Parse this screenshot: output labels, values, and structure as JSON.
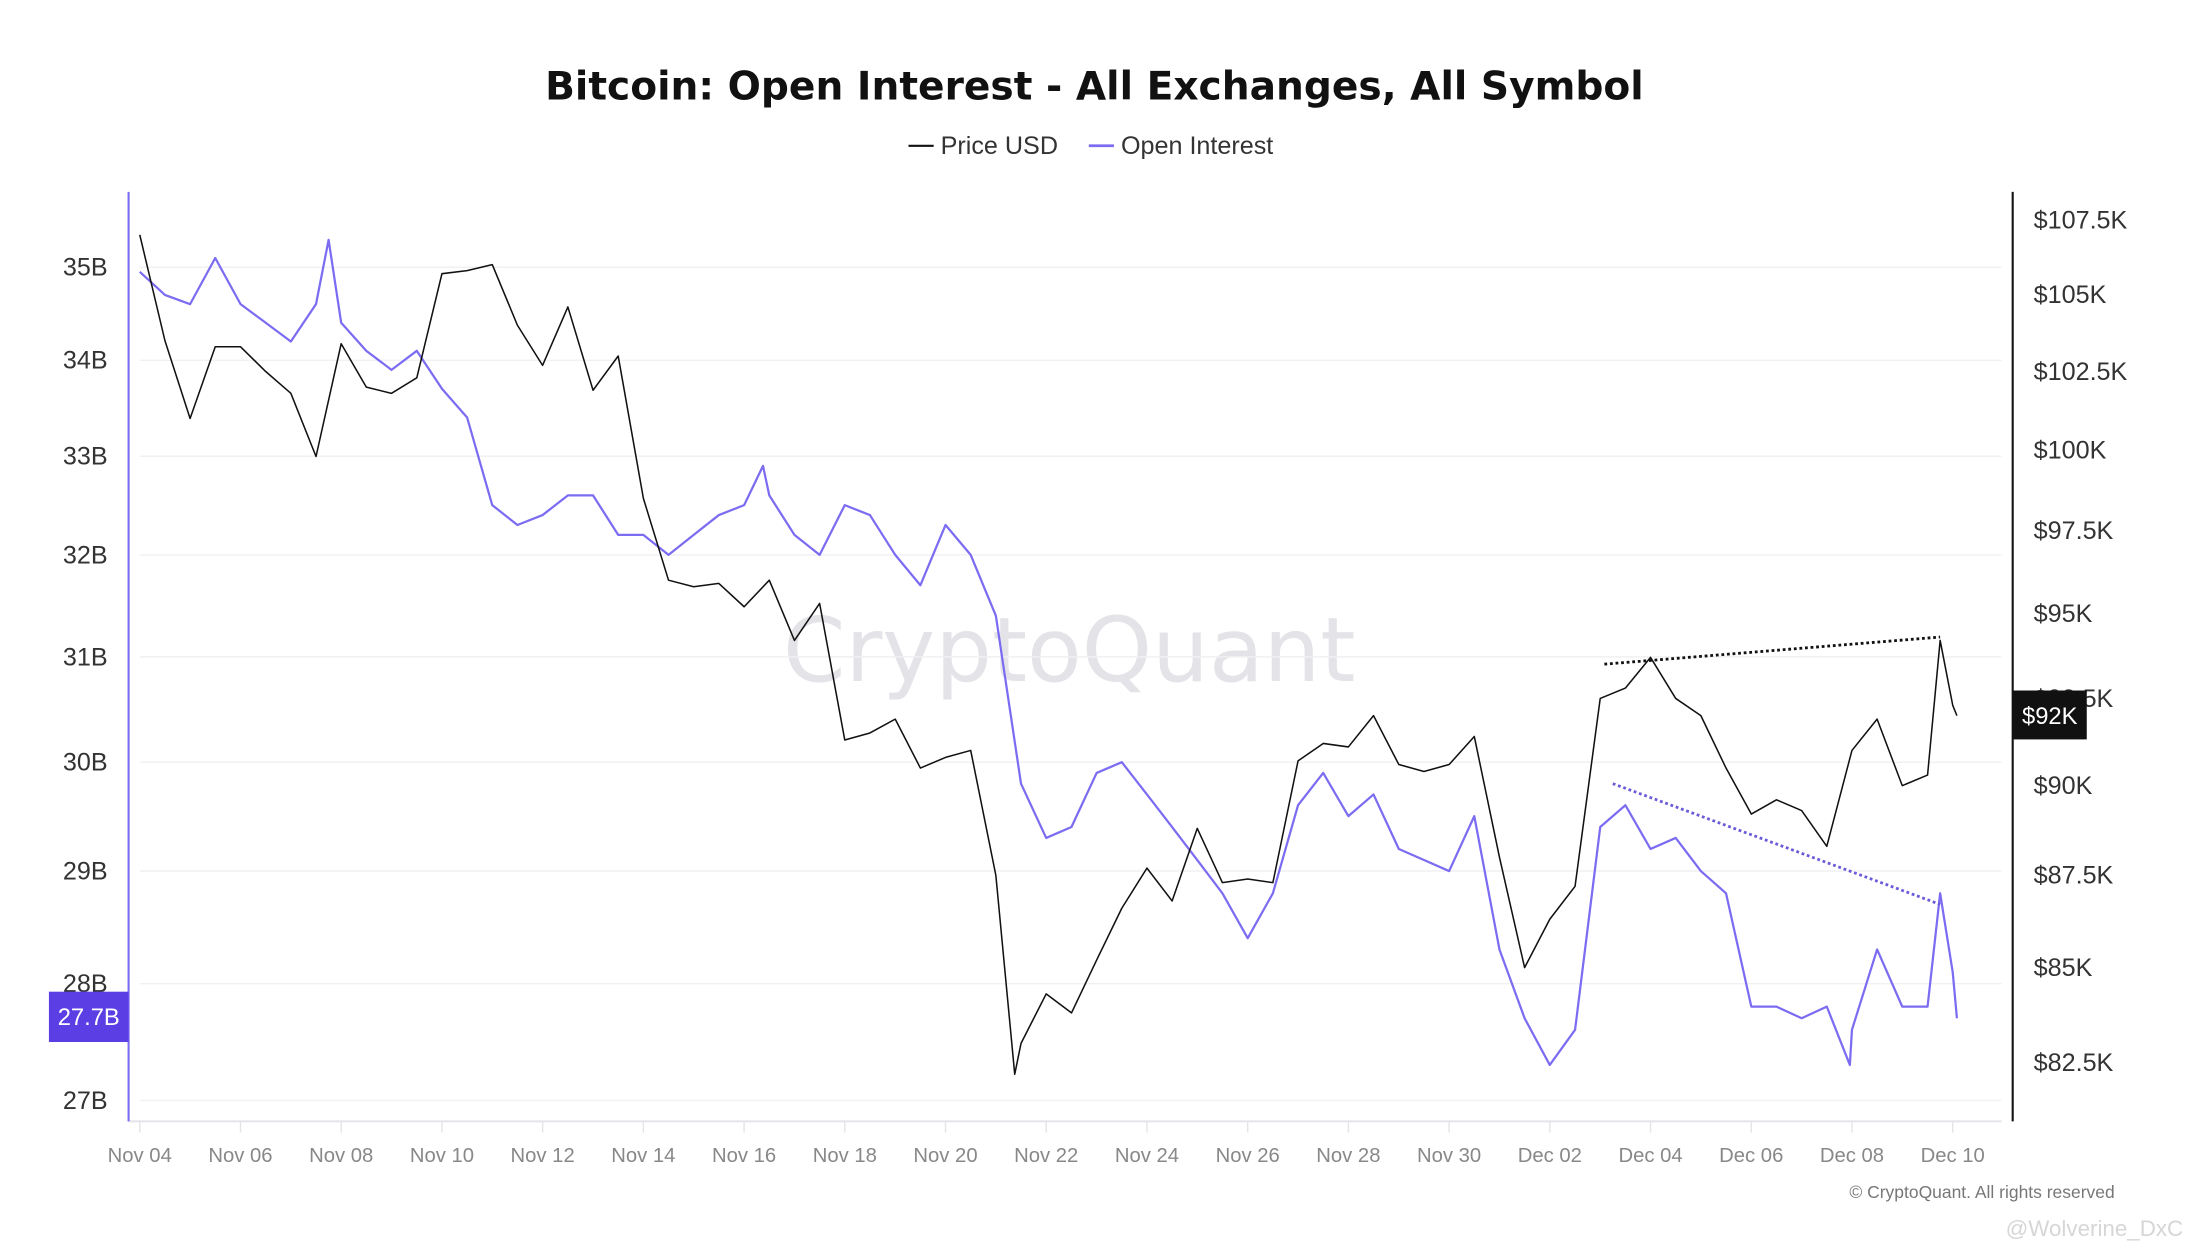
{
  "chart_data": {
    "type": "line",
    "title": "Bitcoin: Open Interest - All Exchanges, All Symbol",
    "legend": {
      "placement": "top-center",
      "entries": [
        "Price USD",
        "Open Interest"
      ]
    },
    "grid": true,
    "y_scale": "log",
    "left_axis": {
      "series": "Open Interest",
      "ticks": [
        "27B",
        "28B",
        "29B",
        "30B",
        "31B",
        "32B",
        "33B",
        "34B",
        "35B"
      ],
      "tick_values": [
        27,
        28,
        29,
        30,
        31,
        32,
        33,
        34,
        35
      ],
      "range": [
        26.85,
        36.4
      ],
      "current_label": "27.7B",
      "current_value": 27.7
    },
    "right_axis": {
      "series": "Price USD",
      "ticks": [
        "$82.5K",
        "$85K",
        "$87.5K",
        "$90K",
        "$92.5K",
        "$95K",
        "$97.5K",
        "$100K",
        "$102.5K",
        "$105K",
        "$107.5K"
      ],
      "tick_values": [
        82.5,
        85,
        87.5,
        90,
        92.5,
        95,
        97.5,
        100,
        102.5,
        105,
        107.5
      ],
      "range": [
        81.7,
        109.4
      ],
      "current_label": "$92K",
      "current_value": 92
    },
    "x_ticks": [
      "Nov 04",
      "Nov 06",
      "Nov 08",
      "Nov 10",
      "Nov 12",
      "Nov 14",
      "Nov 16",
      "Nov 18",
      "Nov 20",
      "Nov 22",
      "Nov 24",
      "Nov 26",
      "Nov 28",
      "Nov 30",
      "Dec 02",
      "Dec 04",
      "Dec 06",
      "Dec 08",
      "Dec 10"
    ],
    "colors": {
      "price": "#111111",
      "open_interest": "#7b6cf2",
      "oi_badge": "#5b3fe4",
      "price_badge": "#111111",
      "grid": "#f1f1f3"
    },
    "series": [
      {
        "name": "Price USD",
        "unit": "K USD",
        "points": [
          [
            "Nov 04 00:00",
            107.0
          ],
          [
            "Nov 04 12:00",
            103.5
          ],
          [
            "Nov 05 00:00",
            101.0
          ],
          [
            "Nov 05 12:00",
            103.3
          ],
          [
            "Nov 06 00:00",
            103.3
          ],
          [
            "Nov 06 12:00",
            102.5
          ],
          [
            "Nov 07 00:00",
            101.8
          ],
          [
            "Nov 07 12:00",
            99.8
          ],
          [
            "Nov 08 00:00",
            103.4
          ],
          [
            "Nov 08 12:00",
            102.0
          ],
          [
            "Nov 09 00:00",
            101.8
          ],
          [
            "Nov 09 12:00",
            102.3
          ],
          [
            "Nov 10 00:00",
            105.7
          ],
          [
            "Nov 10 12:00",
            105.8
          ],
          [
            "Nov 11 00:00",
            106.0
          ],
          [
            "Nov 11 12:00",
            104.0
          ],
          [
            "Nov 12 00:00",
            102.7
          ],
          [
            "Nov 12 12:00",
            104.6
          ],
          [
            "Nov 13 00:00",
            101.9
          ],
          [
            "Nov 13 12:00",
            103.0
          ],
          [
            "Nov 14 00:00",
            98.5
          ],
          [
            "Nov 14 12:00",
            96.0
          ],
          [
            "Nov 15 00:00",
            95.8
          ],
          [
            "Nov 15 12:00",
            95.9
          ],
          [
            "Nov 16 00:00",
            95.2
          ],
          [
            "Nov 16 12:00",
            96.0
          ],
          [
            "Nov 17 00:00",
            94.2
          ],
          [
            "Nov 17 12:00",
            95.3
          ],
          [
            "Nov 18 00:00",
            91.3
          ],
          [
            "Nov 18 12:00",
            91.5
          ],
          [
            "Nov 19 00:00",
            91.9
          ],
          [
            "Nov 19 12:00",
            90.5
          ],
          [
            "Nov 20 00:00",
            90.8
          ],
          [
            "Nov 20 12:00",
            91.0
          ],
          [
            "Nov 21 00:00",
            87.5
          ],
          [
            "Nov 21 09:00",
            82.2
          ],
          [
            "Nov 21 12:00",
            83.0
          ],
          [
            "Nov 22 00:00",
            84.3
          ],
          [
            "Nov 22 12:00",
            83.8
          ],
          [
            "Nov 23 00:00",
            85.2
          ],
          [
            "Nov 23 12:00",
            86.6
          ],
          [
            "Nov 24 00:00",
            87.7
          ],
          [
            "Nov 24 12:00",
            86.8
          ],
          [
            "Nov 25 00:00",
            88.8
          ],
          [
            "Nov 25 12:00",
            87.3
          ],
          [
            "Nov 26 00:00",
            87.4
          ],
          [
            "Nov 26 12:00",
            87.3
          ],
          [
            "Nov 27 00:00",
            90.7
          ],
          [
            "Nov 27 12:00",
            91.2
          ],
          [
            "Nov 28 00:00",
            91.1
          ],
          [
            "Nov 28 12:00",
            92.0
          ],
          [
            "Nov 29 00:00",
            90.6
          ],
          [
            "Nov 29 12:00",
            90.4
          ],
          [
            "Nov 30 00:00",
            90.6
          ],
          [
            "Nov 30 12:00",
            91.4
          ],
          [
            "Dec 01 00:00",
            88.0
          ],
          [
            "Dec 01 12:00",
            85.0
          ],
          [
            "Dec 02 00:00",
            86.3
          ],
          [
            "Dec 02 12:00",
            87.2
          ],
          [
            "Dec 03 00:00",
            92.5
          ],
          [
            "Dec 03 12:00",
            92.8
          ],
          [
            "Dec 04 00:00",
            93.7
          ],
          [
            "Dec 04 12:00",
            92.5
          ],
          [
            "Dec 05 00:00",
            92.0
          ],
          [
            "Dec 05 12:00",
            90.5
          ],
          [
            "Dec 06 00:00",
            89.2
          ],
          [
            "Dec 06 12:00",
            89.6
          ],
          [
            "Dec 07 00:00",
            89.3
          ],
          [
            "Dec 07 12:00",
            88.3
          ],
          [
            "Dec 08 00:00",
            91.0
          ],
          [
            "Dec 08 12:00",
            91.9
          ],
          [
            "Dec 09 00:00",
            90.0
          ],
          [
            "Dec 09 12:00",
            90.3
          ],
          [
            "Dec 09 18:00",
            94.2
          ],
          [
            "Dec 10 00:00",
            92.3
          ],
          [
            "Dec 10 02:00",
            92.0
          ]
        ]
      },
      {
        "name": "Open Interest",
        "unit": "B USD",
        "points": [
          [
            "Nov 04 00:00",
            34.95
          ],
          [
            "Nov 04 12:00",
            34.7
          ],
          [
            "Nov 05 00:00",
            34.6
          ],
          [
            "Nov 05 12:00",
            35.1
          ],
          [
            "Nov 06 00:00",
            34.6
          ],
          [
            "Nov 06 12:00",
            34.4
          ],
          [
            "Nov 07 00:00",
            34.2
          ],
          [
            "Nov 07 12:00",
            34.6
          ],
          [
            "Nov 07 18:00",
            35.3
          ],
          [
            "Nov 08 00:00",
            34.4
          ],
          [
            "Nov 08 12:00",
            34.1
          ],
          [
            "Nov 09 00:00",
            33.9
          ],
          [
            "Nov 09 12:00",
            34.1
          ],
          [
            "Nov 10 00:00",
            33.7
          ],
          [
            "Nov 10 12:00",
            33.4
          ],
          [
            "Nov 11 00:00",
            32.5
          ],
          [
            "Nov 11 12:00",
            32.3
          ],
          [
            "Nov 12 00:00",
            32.4
          ],
          [
            "Nov 12 12:00",
            32.6
          ],
          [
            "Nov 13 00:00",
            32.6
          ],
          [
            "Nov 13 12:00",
            32.2
          ],
          [
            "Nov 14 00:00",
            32.2
          ],
          [
            "Nov 14 12:00",
            32.0
          ],
          [
            "Nov 15 00:00",
            32.2
          ],
          [
            "Nov 15 12:00",
            32.4
          ],
          [
            "Nov 16 00:00",
            32.5
          ],
          [
            "Nov 16 09:00",
            32.9
          ],
          [
            "Nov 16 12:00",
            32.6
          ],
          [
            "Nov 17 00:00",
            32.2
          ],
          [
            "Nov 17 12:00",
            32.0
          ],
          [
            "Nov 18 00:00",
            32.5
          ],
          [
            "Nov 18 12:00",
            32.4
          ],
          [
            "Nov 19 00:00",
            32.0
          ],
          [
            "Nov 19 12:00",
            31.7
          ],
          [
            "Nov 20 00:00",
            32.3
          ],
          [
            "Nov 20 12:00",
            32.0
          ],
          [
            "Nov 21 00:00",
            31.4
          ],
          [
            "Nov 21 12:00",
            29.8
          ],
          [
            "Nov 22 00:00",
            29.3
          ],
          [
            "Nov 22 12:00",
            29.4
          ],
          [
            "Nov 23 00:00",
            29.9
          ],
          [
            "Nov 23 12:00",
            30.0
          ],
          [
            "Nov 24 00:00",
            29.7
          ],
          [
            "Nov 24 12:00",
            29.4
          ],
          [
            "Nov 25 00:00",
            29.1
          ],
          [
            "Nov 25 12:00",
            28.8
          ],
          [
            "Nov 26 00:00",
            28.4
          ],
          [
            "Nov 26 12:00",
            28.8
          ],
          [
            "Nov 27 00:00",
            29.6
          ],
          [
            "Nov 27 12:00",
            29.9
          ],
          [
            "Nov 28 00:00",
            29.5
          ],
          [
            "Nov 28 12:00",
            29.7
          ],
          [
            "Nov 29 00:00",
            29.2
          ],
          [
            "Nov 29 12:00",
            29.1
          ],
          [
            "Nov 30 00:00",
            29.0
          ],
          [
            "Nov 30 12:00",
            29.5
          ],
          [
            "Dec 01 00:00",
            28.3
          ],
          [
            "Dec 01 12:00",
            27.7
          ],
          [
            "Dec 02 00:00",
            27.3
          ],
          [
            "Dec 02 12:00",
            27.6
          ],
          [
            "Dec 03 00:00",
            29.4
          ],
          [
            "Dec 03 12:00",
            29.6
          ],
          [
            "Dec 04 00:00",
            29.2
          ],
          [
            "Dec 04 12:00",
            29.3
          ],
          [
            "Dec 05 00:00",
            29.0
          ],
          [
            "Dec 05 12:00",
            28.8
          ],
          [
            "Dec 06 00:00",
            27.8
          ],
          [
            "Dec 06 12:00",
            27.8
          ],
          [
            "Dec 07 00:00",
            27.7
          ],
          [
            "Dec 07 12:00",
            27.8
          ],
          [
            "Dec 07 23:00",
            27.3
          ],
          [
            "Dec 08 00:00",
            27.6
          ],
          [
            "Dec 08 12:00",
            28.3
          ],
          [
            "Dec 09 00:00",
            27.8
          ],
          [
            "Dec 09 12:00",
            27.8
          ],
          [
            "Dec 09 18:00",
            28.8
          ],
          [
            "Dec 10 00:00",
            28.1
          ],
          [
            "Dec 10 02:00",
            27.7
          ]
        ]
      }
    ],
    "annotations": [
      {
        "type": "dotted-trendline",
        "series": "Price USD",
        "from": [
          "Dec 03 02:00",
          93.5
        ],
        "to": [
          "Dec 09 18:00",
          94.3
        ]
      },
      {
        "type": "dotted-trendline",
        "series": "Open Interest",
        "from": [
          "Dec 03 06:00",
          29.8
        ],
        "to": [
          "Dec 09 18:00",
          28.7
        ]
      }
    ]
  },
  "watermark": "CryptoQuant",
  "copyright": "© CryptoQuant. All rights reserved",
  "credit": "@Wolverine_DxC"
}
